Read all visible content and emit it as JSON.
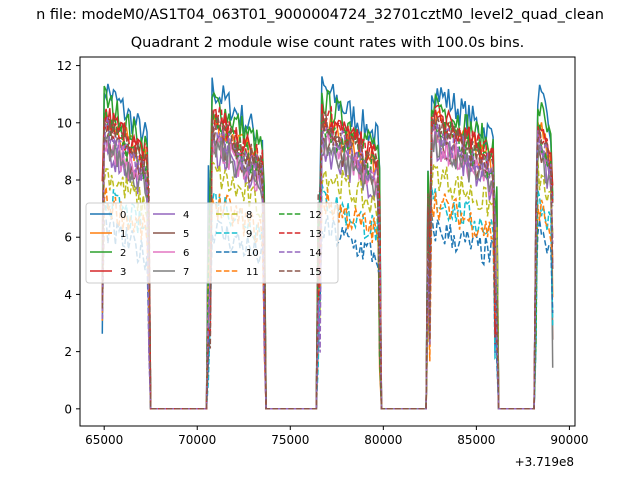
{
  "figure": {
    "suptitle": "n file: modeM0/AS1T04_063T01_9000004724_32701cztM0_level2_quad_clean",
    "offset_label": "+3.719e8"
  },
  "chart_data": {
    "type": "line",
    "title": "Quadrant 2 module wise count rates with 100.0s bins.",
    "xlabel": "",
    "ylabel": "",
    "xlim": [
      63700,
      90300
    ],
    "ylim": [
      -0.6,
      12.3
    ],
    "xticks": [
      65000,
      70000,
      75000,
      80000,
      85000,
      90000
    ],
    "xtick_labels": [
      "65000",
      "70000",
      "75000",
      "80000",
      "85000",
      "90000"
    ],
    "yticks": [
      0,
      2,
      4,
      6,
      8,
      10,
      12
    ],
    "ytick_labels": [
      "0",
      "2",
      "4",
      "6",
      "8",
      "10",
      "12"
    ],
    "legend_loc": "center-left",
    "segments": [
      [
        64900,
        67400
      ],
      [
        70600,
        73600
      ],
      [
        76500,
        79800
      ],
      [
        82400,
        86100
      ],
      [
        88200,
        89100
      ]
    ],
    "gap_value": 0,
    "series": [
      {
        "name": "0",
        "color": "#1f77b4",
        "style": "solid",
        "level": 10.8
      },
      {
        "name": "1",
        "color": "#ff7f0e",
        "style": "solid",
        "level": 9.7
      },
      {
        "name": "2",
        "color": "#2ca02c",
        "style": "solid",
        "level": 10.4
      },
      {
        "name": "3",
        "color": "#d62728",
        "style": "solid",
        "level": 9.9
      },
      {
        "name": "4",
        "color": "#9467bd",
        "style": "solid",
        "level": 8.8
      },
      {
        "name": "5",
        "color": "#8c564b",
        "style": "solid",
        "level": 9.2
      },
      {
        "name": "6",
        "color": "#e377c2",
        "style": "solid",
        "level": 9.0
      },
      {
        "name": "7",
        "color": "#7f7f7f",
        "style": "solid",
        "level": 8.9
      },
      {
        "name": "8",
        "color": "#bcbd22",
        "style": "dashed",
        "level": 8.0
      },
      {
        "name": "9",
        "color": "#17becf",
        "style": "dashed",
        "level": 7.1
      },
      {
        "name": "10",
        "color": "#1f77b4",
        "style": "dashed",
        "level": 6.1
      },
      {
        "name": "11",
        "color": "#ff7f0e",
        "style": "dashed",
        "level": 7.0
      },
      {
        "name": "12",
        "color": "#2ca02c",
        "style": "dashed",
        "level": 9.6
      },
      {
        "name": "13",
        "color": "#d62728",
        "style": "dashed",
        "level": 9.9
      },
      {
        "name": "14",
        "color": "#9467bd",
        "style": "dashed",
        "level": 9.4
      },
      {
        "name": "15",
        "color": "#8c564b",
        "style": "dashed",
        "level": 9.6
      }
    ]
  }
}
